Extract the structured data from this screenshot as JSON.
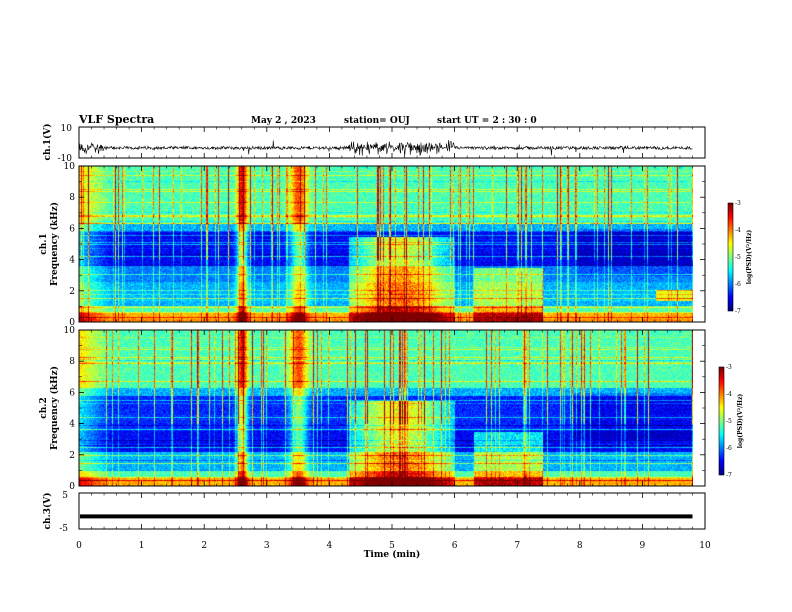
{
  "header": {
    "title": "VLF Spectra",
    "date": "May 2 , 2023",
    "station": "station= OUJ",
    "start_ut": "start UT =  2 : 30 : 0"
  },
  "chart_data": [
    {
      "type": "line",
      "name": "ch1-waveform",
      "ylabel": "ch.1(V)",
      "ylim": [
        -10,
        10
      ],
      "yticks": [
        "10",
        "-10"
      ],
      "xlim": [
        0,
        10
      ],
      "baseline_v": -3.5,
      "burst_window_min": [
        4.3,
        6.0
      ]
    },
    {
      "type": "heatmap",
      "name": "ch1-spectrogram",
      "ylabel_top": "ch.1",
      "ylabel": "Frequency (kHz)",
      "ylim": [
        0,
        10
      ],
      "yticks": [
        "0",
        "2",
        "4",
        "6",
        "8",
        "10"
      ],
      "xlim": [
        0,
        9.8
      ],
      "colorbar": {
        "label": "log(PSD)(V²/Hz)",
        "ticks": [
          "-3",
          "-4",
          "-5",
          "-6",
          "-7"
        ]
      }
    },
    {
      "type": "heatmap",
      "name": "ch2-spectrogram",
      "ylabel_top": "ch.2",
      "ylabel": "Frequency (kHz)",
      "ylim": [
        0,
        10
      ],
      "yticks": [
        "0",
        "2",
        "4",
        "6",
        "8",
        "10"
      ],
      "xlim": [
        0,
        9.8
      ],
      "colorbar": {
        "label": "log(PSD)(V²/Hz)",
        "ticks": [
          "-3",
          "-4",
          "-5",
          "-6",
          "-7"
        ]
      }
    },
    {
      "type": "line",
      "name": "ch3-waveform",
      "ylabel": "ch.3(V)",
      "ylim": [
        -5,
        5
      ],
      "yticks": [
        "5",
        "-5"
      ],
      "xlim": [
        0,
        10
      ],
      "level_v": -1.5
    }
  ],
  "x_axis": {
    "label": "Time (min)",
    "ticks": [
      "0",
      "1",
      "2",
      "3",
      "4",
      "5",
      "6",
      "7",
      "8",
      "9",
      "10"
    ]
  },
  "colors": {
    "line": "#000000",
    "background": "#ffffff"
  }
}
